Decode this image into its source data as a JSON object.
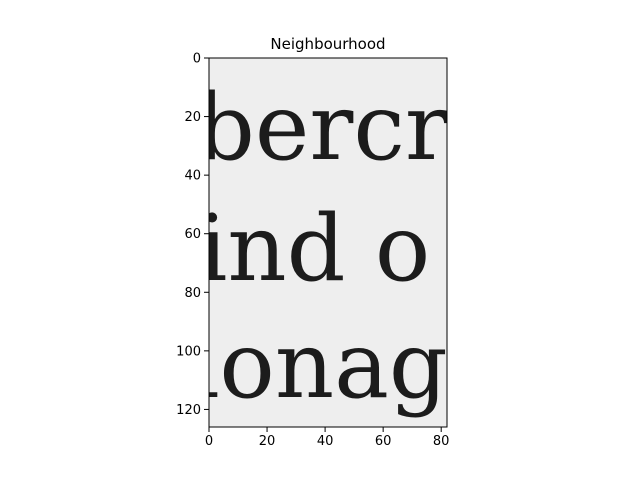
{
  "chart_data": {
    "type": "heatmap",
    "title": "Neighbourhood",
    "colormap": "gray",
    "xlim": [
      0,
      82
    ],
    "ylim": [
      0,
      126
    ],
    "y_inverted": true,
    "grid": false,
    "x_ticks": [
      0,
      20,
      40,
      60,
      80
    ],
    "y_ticks": [
      0,
      20,
      40,
      60,
      80,
      100,
      120
    ],
    "x_tick_labels": [
      "0",
      "20",
      "40",
      "60",
      "80"
    ],
    "y_tick_labels": [
      "0",
      "20",
      "40",
      "60",
      "80",
      "100",
      "120"
    ],
    "image_text_lines": [
      "bercr",
      "ind o",
      "ionag"
    ]
  }
}
